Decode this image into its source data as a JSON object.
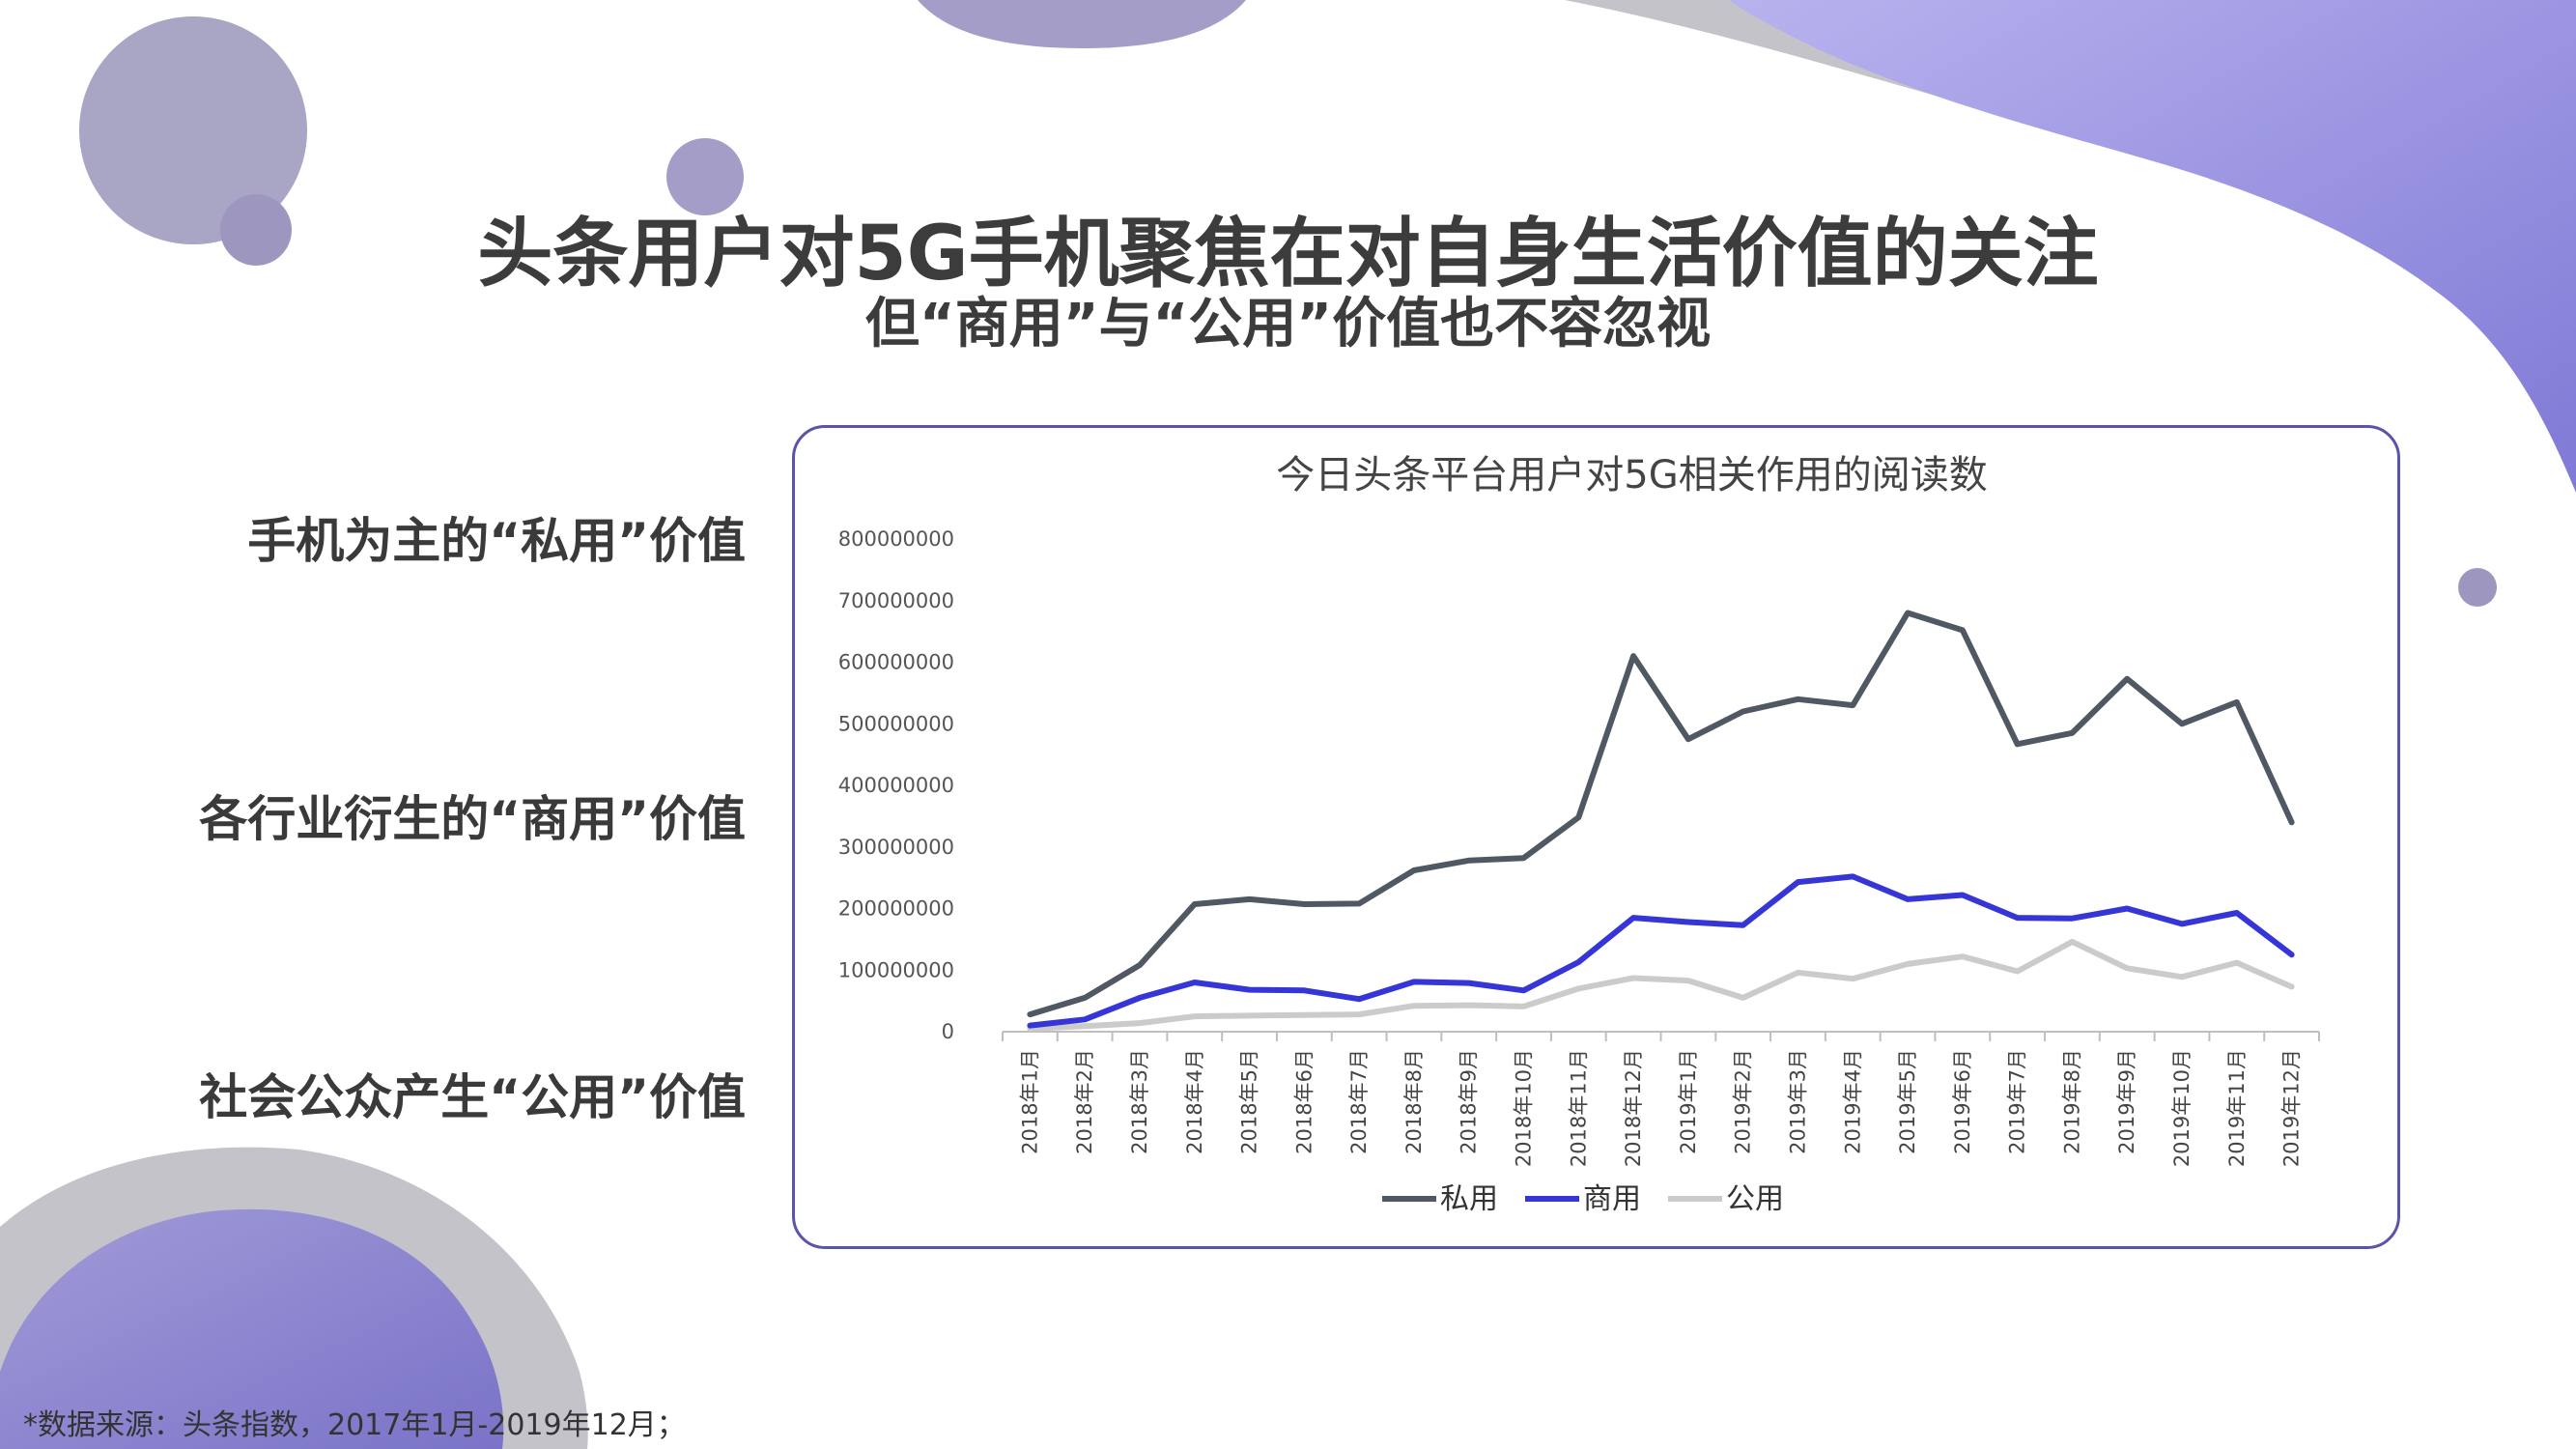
{
  "title": "头条用户对5G手机聚焦在对自身生活价值的关注",
  "subtitle": "但“商用”与“公用”价值也不容忽视",
  "side_labels": [
    "手机为主的“私用”价值",
    "各行业衍生的“商用”价值",
    "社会公众产生“公用”价值"
  ],
  "footnote": "*数据来源：头条指数，2017年1月-2019年12月；",
  "colors": {
    "accent_purple": "#8c84d4",
    "deco_gray": "#c4c3c9",
    "deco_circle": "#9d97bf",
    "border": "#5a55a8"
  },
  "chart_data": {
    "type": "line",
    "title": "今日头条平台用户对5G相关作用的阅读数",
    "xlabel": "",
    "ylabel": "",
    "ylim": [
      0,
      800000000
    ],
    "yticks": [
      "0",
      "100000000",
      "200000000",
      "300000000",
      "400000000",
      "500000000",
      "600000000",
      "700000000",
      "800000000"
    ],
    "categories": [
      "2018年1月",
      "2018年2月",
      "2018年3月",
      "2018年4月",
      "2018年5月",
      "2018年6月",
      "2018年7月",
      "2018年8月",
      "2018年9月",
      "2018年10月",
      "2018年11月",
      "2018年12月",
      "2019年1月",
      "2019年2月",
      "2019年3月",
      "2019年4月",
      "2019年5月",
      "2019年6月",
      "2019年7月",
      "2019年8月",
      "2019年9月",
      "2019年10月",
      "2019年11月",
      "2019年12月"
    ],
    "legend_position": "bottom",
    "series": [
      {
        "name": "私用",
        "color": "#4f5863",
        "values": [
          28000000,
          55000000,
          108000000,
          207000000,
          215000000,
          207000000,
          208000000,
          262000000,
          278000000,
          282000000,
          348000000,
          610000000,
          475000000,
          520000000,
          540000000,
          530000000,
          680000000,
          652000000,
          467000000,
          485000000,
          573000000,
          500000000,
          535000000,
          340000000
        ]
      },
      {
        "name": "商用",
        "color": "#3535d8",
        "values": [
          10000000,
          20000000,
          55000000,
          80000000,
          68000000,
          67000000,
          53000000,
          81000000,
          79000000,
          67000000,
          113000000,
          185000000,
          178000000,
          173000000,
          243000000,
          252000000,
          215000000,
          222000000,
          185000000,
          184000000,
          200000000,
          175000000,
          193000000,
          125000000
        ]
      },
      {
        "name": "公用",
        "color": "#cbcbcb",
        "values": [
          5000000,
          9000000,
          14000000,
          25000000,
          26000000,
          27000000,
          28000000,
          42000000,
          43000000,
          41000000,
          70000000,
          87000000,
          83000000,
          55000000,
          96000000,
          86000000,
          110000000,
          122000000,
          98000000,
          146000000,
          103000000,
          89000000,
          112000000,
          73000000
        ]
      }
    ]
  }
}
